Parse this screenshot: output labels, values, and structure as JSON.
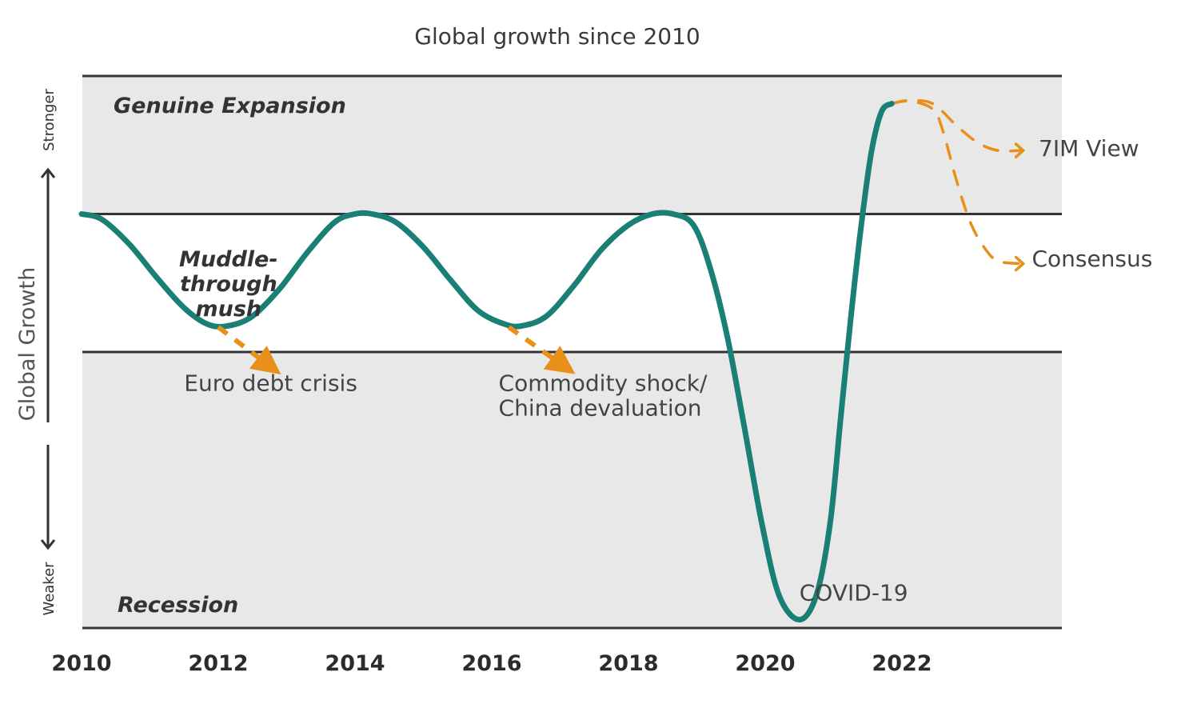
{
  "chart_data": {
    "type": "line",
    "title": "Global growth since 2010",
    "xlabel": "",
    "ylabel": "Global Growth",
    "y_axis_top": "Stronger",
    "y_axis_bottom": "Weaker",
    "x_ticks": [
      "2010",
      "2012",
      "2014",
      "2016",
      "2018",
      "2020",
      "2022"
    ],
    "xlim": [
      2010,
      2024.8
    ],
    "ylim": [
      -1.0,
      1.0
    ],
    "bands": [
      {
        "label": "Genuine Expansion",
        "from": 0.5,
        "to": 1.0,
        "fill": "#e8e8e8"
      },
      {
        "label": "",
        "from": 0.0,
        "to": 0.5,
        "fill": "#ffffff"
      },
      {
        "label": "Recession",
        "from": -1.0,
        "to": 0.0,
        "fill": "#e8e8e8"
      }
    ],
    "series": [
      {
        "name": "Global growth",
        "color": "#1a7f75",
        "x": [
          2010.0,
          2010.3,
          2010.7,
          2011.1,
          2011.5,
          2011.85,
          2012.15,
          2012.5,
          2012.9,
          2013.3,
          2013.7,
          2014.0,
          2014.25,
          2014.6,
          2015.0,
          2015.4,
          2015.8,
          2016.2,
          2016.45,
          2016.8,
          2017.2,
          2017.6,
          2018.0,
          2018.35,
          2018.65,
          2018.95,
          2019.2,
          2019.45,
          2019.7,
          2019.95,
          2020.2,
          2020.5,
          2020.75,
          2020.95,
          2021.1,
          2021.25,
          2021.4,
          2021.55,
          2021.7,
          2021.85
        ],
        "y": [
          0.5,
          0.48,
          0.39,
          0.27,
          0.16,
          0.1,
          0.095,
          0.13,
          0.23,
          0.36,
          0.47,
          0.5,
          0.5,
          0.47,
          0.38,
          0.26,
          0.15,
          0.1,
          0.095,
          0.13,
          0.24,
          0.37,
          0.46,
          0.5,
          0.5,
          0.46,
          0.3,
          0.05,
          -0.28,
          -0.62,
          -0.88,
          -0.97,
          -0.88,
          -0.62,
          -0.25,
          0.12,
          0.45,
          0.72,
          0.87,
          0.9
        ]
      },
      {
        "name": "7IM View",
        "color": "#e8901a",
        "dashed": true,
        "x": [
          2021.85,
          2022.1,
          2022.45,
          2022.8,
          2023.1,
          2023.4,
          2023.75
        ],
        "y": [
          0.9,
          0.91,
          0.9,
          0.82,
          0.76,
          0.73,
          0.73
        ]
      },
      {
        "name": "Consensus",
        "color": "#e8901a",
        "dashed": true,
        "x": [
          2021.85,
          2022.1,
          2022.45,
          2022.6,
          2022.8,
          2023.0,
          2023.2,
          2023.4,
          2023.75
        ],
        "y": [
          0.9,
          0.91,
          0.88,
          0.8,
          0.62,
          0.47,
          0.38,
          0.33,
          0.32
        ]
      }
    ],
    "arrows": [
      {
        "name": "euro-arrow",
        "color": "#e8901a",
        "from": [
          2012.0,
          0.09
        ],
        "to": [
          2012.75,
          -0.05
        ]
      },
      {
        "name": "commodity-arrow",
        "color": "#e8901a",
        "from": [
          2016.25,
          0.09
        ],
        "to": [
          2017.05,
          -0.05
        ]
      }
    ],
    "annotations": [
      {
        "name": "muddle-line-1",
        "text": "Muddle-",
        "style": "zone",
        "at": [
          2012.15,
          0.31
        ]
      },
      {
        "name": "muddle-line-2",
        "text": "through",
        "style": "zone",
        "at": [
          2012.15,
          0.22
        ]
      },
      {
        "name": "muddle-line-3",
        "text": "mush",
        "style": "zone",
        "at": [
          2012.15,
          0.13
        ]
      },
      {
        "name": "euro-label",
        "text": "Euro debt crisis",
        "style": "note",
        "at": [
          2011.5,
          -0.14
        ]
      },
      {
        "name": "commodity-label-1",
        "text": "Commodity shock/",
        "style": "note",
        "at": [
          2016.1,
          -0.14
        ]
      },
      {
        "name": "commodity-label-2",
        "text": "China devaluation",
        "style": "note",
        "at": [
          2016.1,
          -0.23
        ]
      },
      {
        "name": "covid-label",
        "text": "COVID-19",
        "style": "note",
        "at": [
          2020.5,
          -0.9
        ]
      },
      {
        "name": "view-label",
        "text": "7IM View",
        "style": "note",
        "at": [
          2024.0,
          0.71
        ]
      },
      {
        "name": "consensus-label",
        "text": "Consensus",
        "style": "note",
        "at": [
          2023.9,
          0.31
        ]
      }
    ]
  }
}
